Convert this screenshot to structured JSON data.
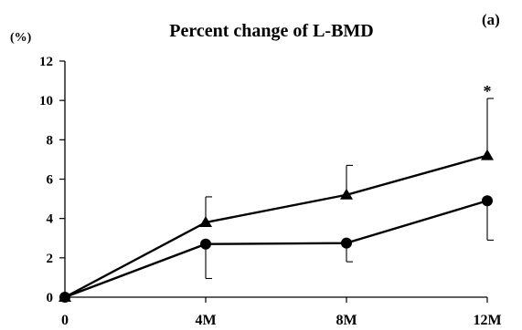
{
  "chart_data": {
    "type": "line",
    "title": "Percent change of L-BMD",
    "panel_label": "(a)",
    "ylabel": "(%)",
    "categories": [
      "0",
      "4M",
      "8M",
      "12M"
    ],
    "ylim": [
      0,
      12
    ],
    "yticks": [
      "0",
      "2",
      "4",
      "6",
      "8",
      "10",
      "12"
    ],
    "grid": false,
    "series": [
      {
        "marker": "triangle",
        "values": [
          0,
          3.8,
          5.2,
          7.2
        ],
        "error_upper": [
          0,
          1.3,
          1.5,
          2.9
        ]
      },
      {
        "marker": "circle",
        "values": [
          0,
          2.7,
          2.75,
          4.9
        ],
        "error_lower": [
          0,
          1.75,
          0.95,
          2.0
        ]
      }
    ],
    "annotations": [
      {
        "text": "*",
        "category": "12M",
        "y": 10.8
      }
    ],
    "colors": {
      "line": "#000000",
      "background": "#ffffff"
    }
  }
}
